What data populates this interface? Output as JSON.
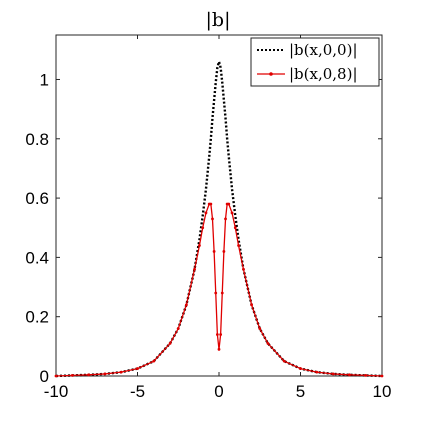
{
  "chart_data": {
    "type": "line",
    "title": "|b|",
    "xlabel": "",
    "ylabel": "",
    "xlim": [
      -10,
      10
    ],
    "ylim": [
      0,
      1.15
    ],
    "x_ticks": [
      -10,
      -5,
      0,
      5,
      10
    ],
    "y_ticks": [
      0,
      0.2,
      0.4,
      0.6,
      0.8,
      1
    ],
    "x_tick_labels": [
      "-10",
      "-5",
      "0",
      "5",
      "10"
    ],
    "y_tick_labels": [
      "0",
      "0.2",
      "0.4",
      "0.6",
      "0.8",
      "1"
    ],
    "grid": false,
    "legend_position": "top-right",
    "series": [
      {
        "name": "|b(x,0,0)|",
        "style": "dotted",
        "color": "#000000",
        "x": [
          -10,
          -9,
          -8,
          -7,
          -6,
          -5,
          -4,
          -3,
          -2.5,
          -2,
          -1.5,
          -1.2,
          -1,
          -0.8,
          -0.6,
          -0.5,
          -0.4,
          -0.3,
          -0.2,
          -0.1,
          0,
          0.1,
          0.2,
          0.3,
          0.4,
          0.5,
          0.6,
          0.8,
          1,
          1.2,
          1.5,
          2,
          2.5,
          3,
          4,
          5,
          6,
          7,
          8,
          9,
          10
        ],
        "y": [
          0.0,
          0.002,
          0.004,
          0.007,
          0.013,
          0.025,
          0.05,
          0.11,
          0.16,
          0.24,
          0.36,
          0.46,
          0.54,
          0.63,
          0.74,
          0.8,
          0.87,
          0.93,
          0.99,
          1.04,
          1.06,
          1.04,
          0.99,
          0.93,
          0.87,
          0.8,
          0.74,
          0.63,
          0.54,
          0.46,
          0.36,
          0.24,
          0.16,
          0.11,
          0.05,
          0.025,
          0.013,
          0.007,
          0.004,
          0.002,
          0.0
        ]
      },
      {
        "name": "|b(x,0,8)|",
        "style": "solid-dot",
        "color": "#e00000",
        "x": [
          -10,
          -9,
          -8,
          -7,
          -6,
          -5,
          -4,
          -3,
          -2.5,
          -2,
          -1.5,
          -1.2,
          -1,
          -0.8,
          -0.6,
          -0.5,
          -0.4,
          -0.3,
          -0.2,
          -0.1,
          0,
          0.1,
          0.2,
          0.3,
          0.4,
          0.5,
          0.6,
          0.8,
          1,
          1.2,
          1.5,
          2,
          2.5,
          3,
          4,
          5,
          6,
          7,
          8,
          9,
          10
        ],
        "y": [
          0.0,
          0.002,
          0.004,
          0.007,
          0.013,
          0.025,
          0.05,
          0.11,
          0.16,
          0.24,
          0.36,
          0.44,
          0.5,
          0.55,
          0.58,
          0.58,
          0.53,
          0.42,
          0.28,
          0.14,
          0.09,
          0.14,
          0.28,
          0.42,
          0.53,
          0.58,
          0.58,
          0.55,
          0.5,
          0.44,
          0.36,
          0.24,
          0.16,
          0.11,
          0.05,
          0.025,
          0.013,
          0.007,
          0.004,
          0.002,
          0.0
        ]
      }
    ]
  }
}
